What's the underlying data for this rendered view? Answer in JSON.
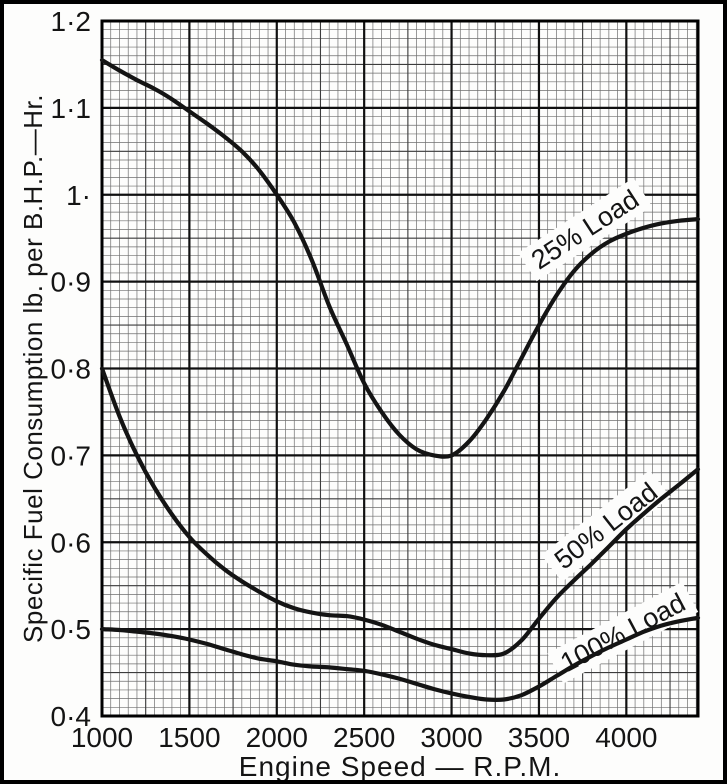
{
  "figure": {
    "description": "Scanned printed graph of specific fuel consumption against engine speed for three engine load levels",
    "ink_color": "#141414",
    "paper_color": "#fdfdfc",
    "frame_color": "#000000"
  },
  "chart_data": {
    "type": "line",
    "title": "",
    "xlabel": "Engine Speed — R.P.M.",
    "ylabel": "Specific Fuel Consumption  lb. per B.H.P.—Hr.",
    "xlim": [
      1000,
      4410
    ],
    "ylim": [
      0.4,
      1.2
    ],
    "grid": {
      "shown": true,
      "minor_x_step_rpm": 50,
      "medium_x_step_rpm": 250,
      "major_x_step_rpm": 500,
      "minor_y_step": 0.01,
      "medium_y_step": 0.05,
      "major_y_step": 0.1
    },
    "x_ticks": [
      1000,
      1500,
      2000,
      2500,
      3000,
      3500,
      4000
    ],
    "x_tick_labels": [
      "1000",
      "1500",
      "2000",
      "2500",
      "3000",
      "3500",
      "4000"
    ],
    "y_ticks": [
      1.2,
      1.1,
      1.0,
      0.9,
      0.8,
      0.7,
      0.6,
      0.5,
      0.4
    ],
    "y_tick_labels": [
      "1·2",
      "1·1",
      "1·",
      "0·9",
      "0·8",
      "0·7",
      "0·6",
      "0·5",
      "0·4"
    ],
    "legend_position": "labels-on-curves",
    "series": [
      {
        "name": "25% Load",
        "label": {
          "text": "25% Load",
          "rpm": 3770,
          "value": 0.958,
          "angle": -33
        },
        "points": [
          [
            1000,
            1.155
          ],
          [
            1100,
            1.143
          ],
          [
            1200,
            1.132
          ],
          [
            1300,
            1.122
          ],
          [
            1400,
            1.11
          ],
          [
            1500,
            1.096
          ],
          [
            1600,
            1.082
          ],
          [
            1700,
            1.067
          ],
          [
            1800,
            1.05
          ],
          [
            1900,
            1.028
          ],
          [
            2000,
            1.0
          ],
          [
            2100,
            0.968
          ],
          [
            2200,
            0.925
          ],
          [
            2300,
            0.872
          ],
          [
            2400,
            0.828
          ],
          [
            2500,
            0.783
          ],
          [
            2600,
            0.75
          ],
          [
            2700,
            0.724
          ],
          [
            2800,
            0.707
          ],
          [
            2900,
            0.7
          ],
          [
            3000,
            0.7
          ],
          [
            3100,
            0.716
          ],
          [
            3200,
            0.742
          ],
          [
            3300,
            0.774
          ],
          [
            3400,
            0.812
          ],
          [
            3500,
            0.85
          ],
          [
            3600,
            0.884
          ],
          [
            3700,
            0.912
          ],
          [
            3800,
            0.932
          ],
          [
            3900,
            0.946
          ],
          [
            4000,
            0.955
          ],
          [
            4100,
            0.962
          ],
          [
            4200,
            0.967
          ],
          [
            4300,
            0.97
          ],
          [
            4410,
            0.972
          ]
        ]
      },
      {
        "name": "50% Load",
        "label": {
          "text": "50% Load",
          "rpm": 3890,
          "value": 0.617,
          "angle": -38
        },
        "points": [
          [
            1000,
            0.8
          ],
          [
            1100,
            0.745
          ],
          [
            1200,
            0.7
          ],
          [
            1300,
            0.663
          ],
          [
            1400,
            0.632
          ],
          [
            1500,
            0.606
          ],
          [
            1600,
            0.586
          ],
          [
            1700,
            0.569
          ],
          [
            1800,
            0.555
          ],
          [
            1900,
            0.543
          ],
          [
            2000,
            0.532
          ],
          [
            2100,
            0.524
          ],
          [
            2200,
            0.519
          ],
          [
            2300,
            0.516
          ],
          [
            2400,
            0.515
          ],
          [
            2500,
            0.511
          ],
          [
            2600,
            0.505
          ],
          [
            2700,
            0.497
          ],
          [
            2800,
            0.489
          ],
          [
            2900,
            0.482
          ],
          [
            3000,
            0.477
          ],
          [
            3100,
            0.472
          ],
          [
            3200,
            0.47
          ],
          [
            3300,
            0.472
          ],
          [
            3400,
            0.487
          ],
          [
            3500,
            0.512
          ],
          [
            3600,
            0.536
          ],
          [
            3700,
            0.556
          ],
          [
            3800,
            0.575
          ],
          [
            3900,
            0.595
          ],
          [
            4000,
            0.615
          ],
          [
            4100,
            0.633
          ],
          [
            4200,
            0.65
          ],
          [
            4300,
            0.666
          ],
          [
            4410,
            0.684
          ]
        ]
      },
      {
        "name": "100% Load",
        "label": {
          "text": "100% Load",
          "rpm": 3985,
          "value": 0.494,
          "angle": -28
        },
        "points": [
          [
            1000,
            0.5
          ],
          [
            1100,
            0.499
          ],
          [
            1200,
            0.497
          ],
          [
            1300,
            0.495
          ],
          [
            1400,
            0.492
          ],
          [
            1500,
            0.488
          ],
          [
            1600,
            0.483
          ],
          [
            1700,
            0.477
          ],
          [
            1800,
            0.471
          ],
          [
            1900,
            0.466
          ],
          [
            2000,
            0.463
          ],
          [
            2100,
            0.459
          ],
          [
            2200,
            0.457
          ],
          [
            2300,
            0.456
          ],
          [
            2400,
            0.454
          ],
          [
            2500,
            0.452
          ],
          [
            2600,
            0.448
          ],
          [
            2700,
            0.443
          ],
          [
            2800,
            0.437
          ],
          [
            2900,
            0.431
          ],
          [
            3000,
            0.426
          ],
          [
            3100,
            0.422
          ],
          [
            3200,
            0.419
          ],
          [
            3300,
            0.419
          ],
          [
            3400,
            0.424
          ],
          [
            3500,
            0.434
          ],
          [
            3600,
            0.446
          ],
          [
            3700,
            0.458
          ],
          [
            3800,
            0.469
          ],
          [
            3900,
            0.479
          ],
          [
            4000,
            0.488
          ],
          [
            4100,
            0.497
          ],
          [
            4200,
            0.504
          ],
          [
            4300,
            0.509
          ],
          [
            4410,
            0.513
          ]
        ]
      }
    ]
  }
}
